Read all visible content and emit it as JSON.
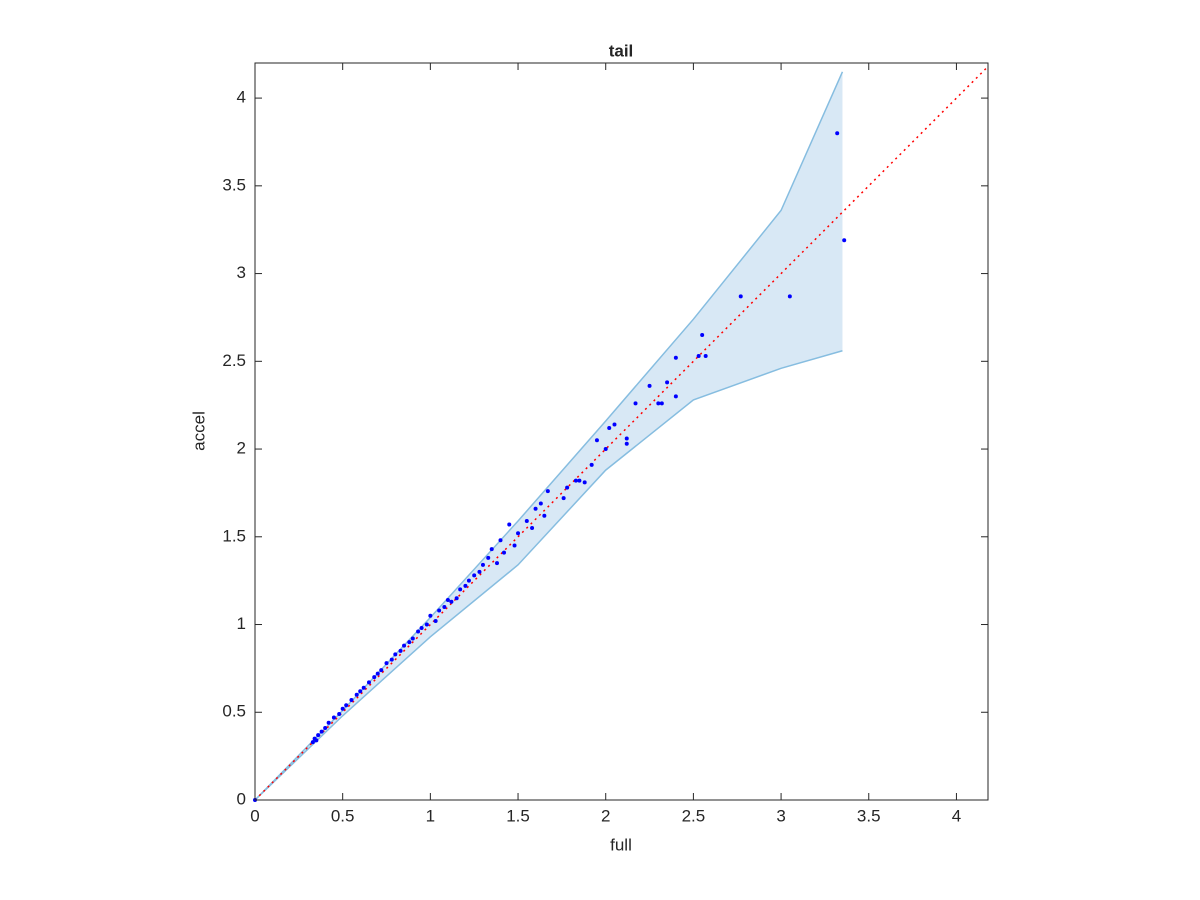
{
  "chart_data": {
    "type": "scatter",
    "title": "tail",
    "x_label": "full",
    "y_label": "accel",
    "xlim": [
      0,
      4.18
    ],
    "ylim": [
      0,
      4.2
    ],
    "xticks": [
      0,
      0.5,
      1,
      1.5,
      2,
      2.5,
      3,
      3.5,
      4
    ],
    "yticks": [
      0,
      0.5,
      1,
      1.5,
      2,
      2.5,
      3,
      3.5,
      4
    ],
    "band": {
      "x": [
        0,
        0.5,
        1,
        1.5,
        2,
        2.5,
        3,
        3.35
      ],
      "upper": [
        0,
        0.51,
        1.04,
        1.59,
        2.16,
        2.74,
        3.36,
        4.15
      ],
      "lower": [
        0,
        0.48,
        0.93,
        1.34,
        1.88,
        2.28,
        2.46,
        2.56
      ],
      "color": "#d8e8f5",
      "edge_color": "#86bde0"
    },
    "reference": {
      "x": [
        0,
        4.18
      ],
      "values": [
        0,
        4.18
      ],
      "color": "#ff0000"
    },
    "points": {
      "color": "#0000ff",
      "x": [
        1.95,
        2.0,
        2.02,
        2.05,
        2.12,
        2.12,
        2.17,
        2.25,
        2.3,
        2.32,
        2.35,
        2.4,
        2.4,
        2.53,
        2.55,
        2.57,
        2.77,
        3.05,
        3.32,
        3.36,
        1.76,
        1.78,
        1.83,
        1.85,
        1.88,
        1.92,
        1.67,
        1.65,
        1.63,
        1.6,
        1.58,
        1.55,
        1.5,
        1.48,
        1.45,
        1.42,
        1.4,
        1.38,
        1.35,
        1.33,
        1.3,
        1.28,
        1.25,
        1.22,
        1.2,
        1.17,
        1.15,
        1.12,
        1.1,
        1.08,
        1.05,
        1.03,
        1.0,
        0.98,
        0.95,
        0.93,
        0.9,
        0.88,
        0.85,
        0.83,
        0.8,
        0.78,
        0.75,
        0.72,
        0.7,
        0.68,
        0.65,
        0.62,
        0.6,
        0.58,
        0.55,
        0.52,
        0.5,
        0.48,
        0.45,
        0.42,
        0.4,
        0.38,
        0.36,
        0.34,
        0.33,
        0.35,
        0.0
      ],
      "values": [
        2.05,
        2.0,
        2.12,
        2.14,
        2.03,
        2.06,
        2.26,
        2.36,
        2.26,
        2.26,
        2.38,
        2.52,
        2.3,
        2.53,
        2.65,
        2.53,
        2.87,
        2.87,
        3.8,
        3.19,
        1.72,
        1.78,
        1.82,
        1.82,
        1.81,
        1.91,
        1.76,
        1.62,
        1.69,
        1.66,
        1.55,
        1.59,
        1.52,
        1.45,
        1.57,
        1.41,
        1.48,
        1.35,
        1.43,
        1.38,
        1.34,
        1.3,
        1.28,
        1.25,
        1.22,
        1.2,
        1.15,
        1.13,
        1.14,
        1.1,
        1.08,
        1.02,
        1.05,
        1.0,
        0.98,
        0.96,
        0.92,
        0.9,
        0.88,
        0.85,
        0.83,
        0.8,
        0.78,
        0.74,
        0.72,
        0.7,
        0.67,
        0.64,
        0.62,
        0.6,
        0.57,
        0.54,
        0.52,
        0.49,
        0.47,
        0.44,
        0.41,
        0.39,
        0.37,
        0.35,
        0.33,
        0.34,
        0.0
      ]
    }
  }
}
